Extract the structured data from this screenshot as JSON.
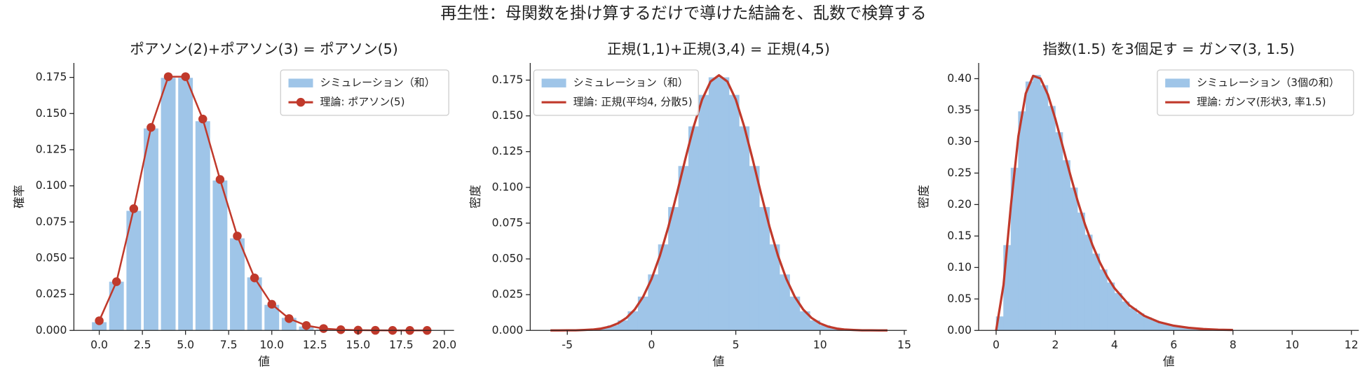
{
  "title": "再生性：母関数を掛け算するだけで導けた結論を、乱数で検算する",
  "chart_data": [
    {
      "type": "bar",
      "title": "ポアソン(2)+ポアソン(3) = ポアソン(5)",
      "xlabel": "値",
      "ylabel": "確率",
      "x": [
        0,
        1,
        2,
        3,
        4,
        5,
        6,
        7,
        8,
        9,
        10,
        11,
        12,
        13,
        14,
        15,
        16,
        17,
        18,
        19
      ],
      "series": [
        {
          "name": "シミュレーション（和）",
          "type": "bar",
          "color": "#9fc5e8",
          "values": [
            0.006,
            0.034,
            0.083,
            0.14,
            0.175,
            0.175,
            0.145,
            0.104,
            0.064,
            0.037,
            0.018,
            0.009,
            0.003,
            0.001,
            0.0005,
            0.0002,
            0,
            0,
            0,
            0
          ]
        },
        {
          "name": "理論: ポアソン(5)",
          "type": "line",
          "color": "#c0392b",
          "marker": "o",
          "values": [
            0.0067,
            0.0337,
            0.0842,
            0.1404,
            0.1755,
            0.1755,
            0.1462,
            0.1044,
            0.0653,
            0.0363,
            0.0181,
            0.0082,
            0.0034,
            0.0013,
            0.0005,
            0.0002,
            5e-05,
            1e-05,
            0,
            0
          ]
        }
      ],
      "xlim": [
        -1.47,
        20.56
      ],
      "ylim": [
        0,
        0.185
      ],
      "xticks": [
        {
          "value": 0,
          "label": "0.0"
        },
        2.5,
        {
          "value": 5,
          "label": "5.0"
        },
        7.5,
        {
          "value": 10,
          "label": "10.0"
        },
        12.5,
        {
          "value": 15,
          "label": "15.0"
        },
        17.5,
        {
          "value": 20,
          "label": "20.0"
        }
      ],
      "yticks": [
        {
          "value": 0,
          "label": "0.000"
        },
        0.025,
        {
          "value": 0.05,
          "label": "0.050"
        },
        0.075,
        {
          "value": 0.1,
          "label": "0.100"
        },
        0.125,
        {
          "value": 0.15,
          "label": "0.150"
        },
        0.175
      ],
      "legend": "upper right"
    },
    {
      "type": "histogram",
      "title": "正規(1,1)+正規(3,4) = 正規(4,5)",
      "xlabel": "値",
      "ylabel": "密度",
      "series": [
        {
          "name": "シミュレーション（和）",
          "type": "histogram",
          "color": "#9fc5e8",
          "bins": [
            -5,
            -4.4,
            -3.8,
            -3.2,
            -2.6,
            -2,
            -1.4,
            -0.8,
            -0.2,
            0.4,
            1,
            1.6,
            2.2,
            2.8,
            3.4,
            4,
            4.6,
            5.2,
            5.8,
            6.4,
            7,
            7.6,
            8.2,
            8.8,
            9.4,
            10,
            10.6,
            11.2,
            11.8,
            12.4,
            13
          ],
          "values": [
            0.0001,
            0.0003,
            0.0006,
            0.0015,
            0.0034,
            0.0069,
            0.0132,
            0.0235,
            0.039,
            0.06,
            0.0861,
            0.1148,
            0.1425,
            0.1645,
            0.1768,
            0.1768,
            0.1645,
            0.1425,
            0.1148,
            0.0861,
            0.06,
            0.039,
            0.0235,
            0.0132,
            0.0069,
            0.0034,
            0.0015,
            0.0006,
            0.0003,
            0.0001
          ]
        },
        {
          "name": "理論: 正規(平均4, 分散5)",
          "type": "line",
          "color": "#c0392b",
          "x": [
            -6,
            -5.5,
            -5,
            -4.5,
            -4,
            -3.5,
            -3,
            -2.5,
            -2,
            -1.5,
            -1,
            -0.5,
            0,
            0.5,
            1,
            1.5,
            2,
            2.5,
            3,
            3.5,
            4,
            4.5,
            5,
            5.5,
            6,
            6.5,
            7,
            7.5,
            8,
            8.5,
            9,
            9.5,
            10,
            10.5,
            11,
            11.5,
            12,
            12.5,
            13,
            13.5,
            14
          ],
          "values": [
            0,
            0,
            0.0001,
            0.0001,
            0.0003,
            0.0006,
            0.0013,
            0.0026,
            0.0049,
            0.0087,
            0.0146,
            0.0235,
            0.036,
            0.0524,
            0.0725,
            0.0955,
            0.1196,
            0.1425,
            0.1614,
            0.174,
            0.1784,
            0.174,
            0.1614,
            0.1425,
            0.1196,
            0.0955,
            0.0725,
            0.0524,
            0.036,
            0.0235,
            0.0146,
            0.0087,
            0.0049,
            0.0026,
            0.0013,
            0.0006,
            0.0003,
            0.0001,
            0.0001,
            0,
            0
          ]
        }
      ],
      "xlim": [
        -7.2,
        15.15
      ],
      "ylim": [
        0,
        0.187
      ],
      "xticks": [
        -5,
        0,
        5,
        10,
        15
      ],
      "yticks": [
        {
          "value": 0,
          "label": "0.000"
        },
        0.025,
        {
          "value": 0.05,
          "label": "0.050"
        },
        0.075,
        {
          "value": 0.1,
          "label": "0.100"
        },
        0.125,
        {
          "value": 0.15,
          "label": "0.150"
        },
        0.175
      ],
      "legend": "upper left"
    },
    {
      "type": "histogram",
      "title": "指数(1.5) を3個足す = ガンマ(3, 1.5)",
      "xlabel": "値",
      "ylabel": "密度",
      "series": [
        {
          "name": "シミュレーション（3個の和）",
          "type": "histogram",
          "color": "#9fc5e8",
          "bins": [
            0,
            0.25,
            0.5,
            0.75,
            1,
            1.25,
            1.5,
            1.75,
            2,
            2.25,
            2.5,
            2.75,
            3,
            3.25,
            3.5,
            3.75,
            4,
            4.25,
            4.5,
            4.75,
            5,
            5.25,
            5.5,
            5.75,
            6,
            6.25,
            6.5,
            6.75,
            7,
            7.25,
            7.5,
            7.75,
            8
          ],
          "values": [
            0.0219,
            0.1352,
            0.2581,
            0.3477,
            0.3951,
            0.4055,
            0.3893,
            0.3563,
            0.3145,
            0.27,
            0.2266,
            0.1869,
            0.1518,
            0.1217,
            0.0965,
            0.0758,
            0.059,
            0.0456,
            0.035,
            0.0268,
            0.0203,
            0.0154,
            0.0115,
            0.0087,
            0.0065,
            0.0048,
            0.0036,
            0.0026,
            0.0019,
            0.0014,
            0.001,
            0.0008
          ]
        },
        {
          "name": "理論: ガンマ(形状3, 率1.5)",
          "type": "line",
          "color": "#c0392b",
          "x": [
            0,
            0.25,
            0.5,
            0.75,
            1,
            1.25,
            1.5,
            1.75,
            2,
            2.25,
            2.5,
            2.75,
            3,
            3.25,
            3.5,
            3.75,
            4,
            4.5,
            5,
            5.5,
            6,
            6.5,
            7,
            7.5,
            8
          ],
          "values": [
            0,
            0.0725,
            0.1993,
            0.3082,
            0.3765,
            0.4045,
            0.4002,
            0.3744,
            0.3361,
            0.2923,
            0.2481,
            0.2062,
            0.1687,
            0.1361,
            0.1085,
            0.0856,
            0.0669,
            0.04,
            0.0233,
            0.0133,
            0.0075,
            0.0042,
            0.0023,
            0.0012,
            0.0007
          ]
        }
      ],
      "xlim": [
        -0.59,
        12.25
      ],
      "ylim": [
        0,
        0.425
      ],
      "xticks": [
        0,
        2,
        4,
        6,
        8,
        10,
        12
      ],
      "yticks": [
        {
          "value": 0,
          "label": "0.00"
        },
        0.05,
        {
          "value": 0.1,
          "label": "0.10"
        },
        0.15,
        {
          "value": 0.2,
          "label": "0.20"
        },
        0.25,
        {
          "value": 0.3,
          "label": "0.30"
        },
        0.35,
        {
          "value": 0.4,
          "label": "0.40"
        }
      ],
      "legend": "upper right"
    }
  ]
}
